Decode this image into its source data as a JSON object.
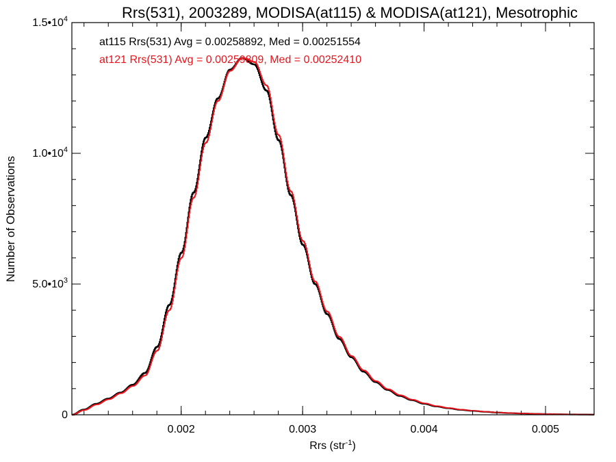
{
  "chart_data": {
    "type": "line",
    "title": "Rrs(531), 2003289, MODISA(at115) & MODISA(at121), Mesotrophic",
    "xlabel": {
      "base": "Rrs (str",
      "sup": "-1",
      "end": ")"
    },
    "ylabel": "Number of Observations",
    "xlim": [
      0.0011,
      0.0054
    ],
    "ylim": [
      0,
      15000
    ],
    "x_ticks": [
      {
        "value": 0.002,
        "label": "0.002"
      },
      {
        "value": 0.003,
        "label": "0.003"
      },
      {
        "value": 0.004,
        "label": "0.004"
      },
      {
        "value": 0.005,
        "label": "0.005"
      }
    ],
    "x_minor_step": 0.0002,
    "y_ticks": [
      {
        "value": 0,
        "mant": "0",
        "exp": ""
      },
      {
        "value": 5000,
        "mant": "5.0•10",
        "exp": "3"
      },
      {
        "value": 10000,
        "mant": "1.0•10",
        "exp": "4"
      },
      {
        "value": 15000,
        "mant": "1.5•10",
        "exp": "4"
      }
    ],
    "y_minor_step": 1000,
    "grid": false,
    "legend": "top-left",
    "series": [
      {
        "name": "at115",
        "color": "#000000",
        "stats": "at115 Rrs(531) Avg = 0.00258892, Med = 0.00251554",
        "x": [
          0.0011,
          0.0012,
          0.0013,
          0.0014,
          0.0015,
          0.0016,
          0.0017,
          0.0018,
          0.0019,
          0.002,
          0.0021,
          0.0022,
          0.0023,
          0.0024,
          0.0025,
          0.0026,
          0.0027,
          0.0028,
          0.0029,
          0.003,
          0.0031,
          0.0032,
          0.0033,
          0.0034,
          0.0035,
          0.0036,
          0.0037,
          0.0038,
          0.0039,
          0.004,
          0.0041,
          0.0042,
          0.0043,
          0.0044,
          0.0045,
          0.0046,
          0.0047,
          0.0048,
          0.0049,
          0.005,
          0.0051,
          0.0052,
          0.0053,
          0.0054
        ],
        "y": [
          0,
          200,
          420,
          620,
          850,
          1150,
          1600,
          2600,
          4200,
          6200,
          8500,
          10600,
          12100,
          13200,
          13650,
          13400,
          12400,
          10500,
          8400,
          6500,
          5000,
          3850,
          2900,
          2200,
          1650,
          1250,
          950,
          720,
          560,
          420,
          320,
          250,
          190,
          150,
          115,
          85,
          65,
          50,
          38,
          28,
          20,
          14,
          10,
          6
        ]
      },
      {
        "name": "at121",
        "color": "#e8141c",
        "stats": "at121 Rrs(531) Avg = 0.00259809, Med = 0.00252410",
        "x": [
          0.0011,
          0.0012,
          0.0013,
          0.0014,
          0.0015,
          0.0016,
          0.0017,
          0.0018,
          0.0019,
          0.002,
          0.0021,
          0.0022,
          0.0023,
          0.0024,
          0.0025,
          0.0026,
          0.0027,
          0.0028,
          0.0029,
          0.003,
          0.0031,
          0.0032,
          0.0033,
          0.0034,
          0.0035,
          0.0036,
          0.0037,
          0.0038,
          0.0039,
          0.004,
          0.0041,
          0.0042,
          0.0043,
          0.0044,
          0.0045,
          0.0046,
          0.0047,
          0.0048,
          0.0049,
          0.005,
          0.0051,
          0.0052,
          0.0053,
          0.0054
        ],
        "y": [
          0,
          180,
          390,
          590,
          820,
          1100,
          1500,
          2450,
          4000,
          6000,
          8300,
          10400,
          12000,
          13150,
          13650,
          13500,
          12600,
          10700,
          8550,
          6650,
          5100,
          3950,
          2980,
          2250,
          1700,
          1290,
          980,
          750,
          580,
          440,
          335,
          260,
          200,
          155,
          120,
          90,
          68,
          52,
          40,
          30,
          21,
          15,
          10,
          6
        ]
      }
    ]
  }
}
